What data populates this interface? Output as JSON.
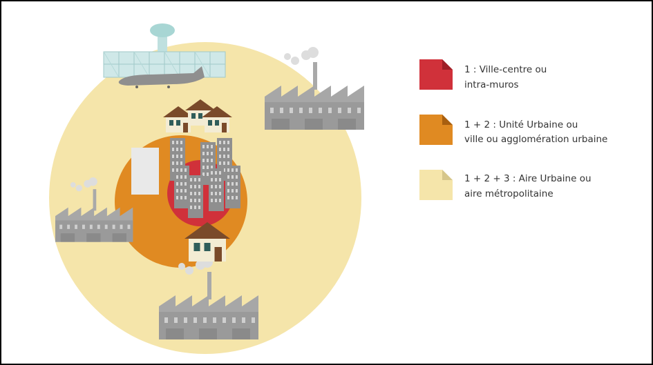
{
  "legend": [
    {
      "lines": [
        "1 : Ville-centre ou",
        "intra-muros"
      ]
    },
    {
      "lines": [
        "1 + 2 : Unité Urbaine ou",
        "ville ou agglomération urbaine"
      ]
    },
    {
      "lines": [
        "1 + 2 + 3 : Aire Urbaine ou",
        "aire métropolitaine"
      ]
    }
  ]
}
